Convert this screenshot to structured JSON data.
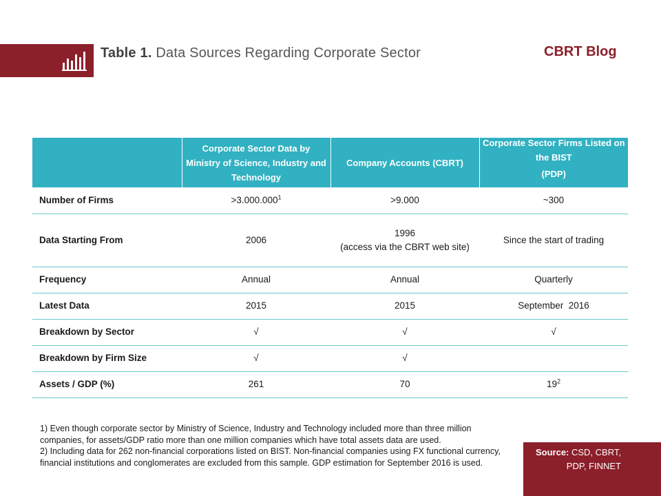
{
  "header": {
    "title_bold": "Table 1.",
    "title_rest": " Data Sources Regarding Corporate Sector",
    "brand": "CBRT Blog",
    "icon": "bar-chart-icon"
  },
  "table": {
    "columns": [
      "",
      "Corporate Sector Data by Ministry of Science, Industry and Technology",
      "Company Accounts (CBRT)",
      "Corporate Sector Firms Listed on the BIST",
      "(PDP)"
    ],
    "rows": {
      "firms": {
        "label": "Number of Firms",
        "c1": ">3.000.000",
        "c1_sup": "1",
        "c2": ">9.000",
        "c3": "~300"
      },
      "start": {
        "label": "Data Starting From",
        "c1": "2006",
        "c2": "1996",
        "c2_sub": "(access via the CBRT web site)",
        "c3": "Since the start of trading"
      },
      "frequency": {
        "label": "Frequency",
        "c1": "Annual",
        "c2": "Annual",
        "c3": "Quarterly"
      },
      "latest": {
        "label": "Latest Data",
        "c1": "2015",
        "c2": "2015",
        "c3": "September  2016"
      },
      "sector": {
        "label": "Breakdown by Sector",
        "c1": "√",
        "c2": "√",
        "c3": "√"
      },
      "size": {
        "label": "Breakdown by Firm Size",
        "c1": "√",
        "c2": "√",
        "c3": ""
      },
      "assets": {
        "label": "Assets / GDP (%)",
        "c1": "261",
        "c2": "70",
        "c3": "19",
        "c3_sup": "2"
      }
    }
  },
  "notes": {
    "note1": "1) Even though corporate sector by Ministry of Science, Industry and Technology included more than three million companies, for assets/GDP ratio more than one million companies which have total assets data are used.",
    "note2": "2) Including data for 262  non-financial corporations listed on BIST. Non-financial companies using FX functional currency, financial institutions and conglomerates are excluded from this sample. GDP estimation for September 2016  is used."
  },
  "source": {
    "label": "Source:",
    "text": " CSD, CBRT, PDP, FINNET"
  },
  "colors": {
    "brand_red": "#8b1f2a",
    "table_header": "#31b1c1",
    "row_rule": "#6cc4cf"
  }
}
